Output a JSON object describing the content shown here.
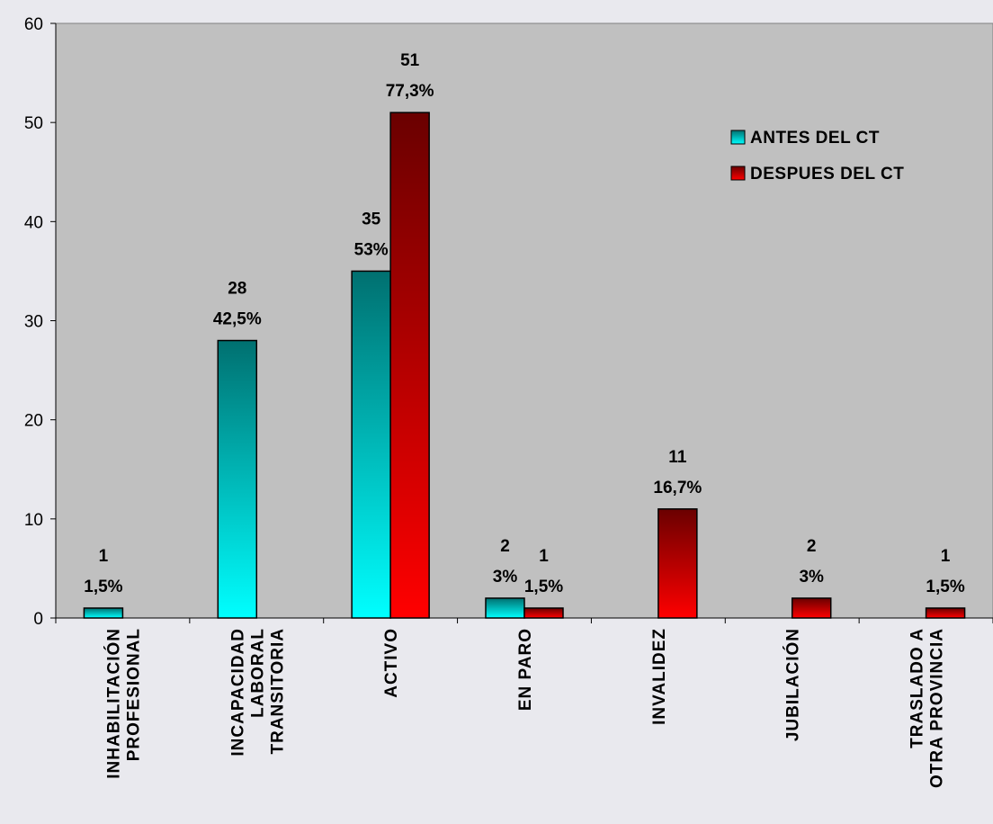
{
  "chart_data": {
    "type": "bar",
    "categories": [
      [
        "INHABILITACIÓN",
        "PROFESIONAL"
      ],
      [
        "INCAPACIDAD",
        "LABORAL",
        "TRANSITORIA"
      ],
      [
        "ACTIVO"
      ],
      [
        "EN PARO"
      ],
      [
        "INVALIDEZ"
      ],
      [
        "JUBILACIÓN"
      ],
      [
        "TRASLADO A",
        "OTRA PROVINCIA"
      ]
    ],
    "series": [
      {
        "name": "ANTES DEL CT",
        "color": "#00ffff",
        "color_dark": "#007070",
        "values": [
          1,
          28,
          35,
          2,
          null,
          null,
          null
        ],
        "labels": [
          [
            "1",
            "1,5%"
          ],
          [
            "28",
            "42,5%"
          ],
          [
            "35",
            "53%"
          ],
          [
            "2",
            "3%"
          ],
          null,
          null,
          null
        ]
      },
      {
        "name": "DESPUES DEL CT",
        "color": "#ff0000",
        "color_dark": "#6a0000",
        "values": [
          null,
          null,
          51,
          1,
          11,
          2,
          1
        ],
        "labels": [
          null,
          null,
          [
            "51",
            "77,3%"
          ],
          [
            "1",
            "1,5%"
          ],
          [
            "11",
            "16,7%"
          ],
          [
            "2",
            "3%"
          ],
          [
            "1",
            "1,5%"
          ]
        ]
      }
    ],
    "ylim": [
      0,
      60
    ],
    "yticks": [
      0,
      10,
      20,
      30,
      40,
      50,
      60
    ],
    "grid": false,
    "legend": "top-right",
    "plot_background": "#c0c0c0"
  }
}
